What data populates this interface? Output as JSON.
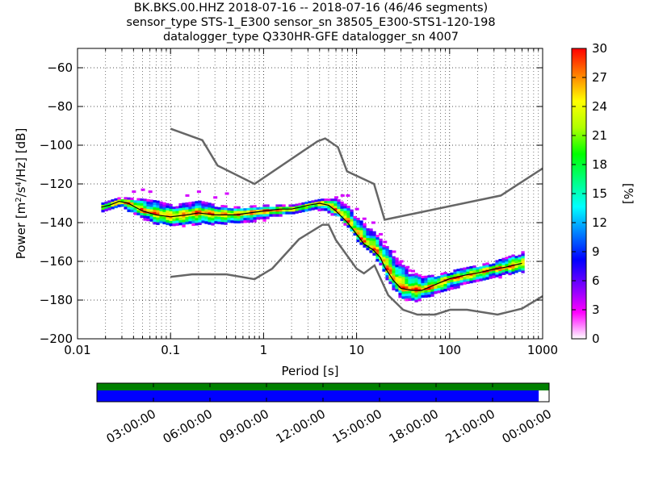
{
  "title": {
    "line1": "BK.BKS.00.HHZ   2018-07-16 -- 2018-07-16  (46/46 segments)",
    "line2": "sensor_type STS-1_E300 sensor_sn 38505_E300-STS1-120-198",
    "line3": "datalogger_type Q330HR-GFE datalogger_sn 4007"
  },
  "chart_data": [
    {
      "type": "heatmap",
      "title": "BK.BKS.00.HHZ   2018-07-16 -- 2018-07-16  (46/46 segments)",
      "xlabel": "Period [s]",
      "ylabel": "Power [m²/s⁴/Hz] [dB]",
      "x_scale": "log",
      "xlim": [
        0.01,
        1000
      ],
      "ylim": [
        -200,
        -50
      ],
      "x_ticks": [
        0.01,
        0.1,
        1,
        10,
        100,
        1000
      ],
      "x_tick_labels": [
        "0.01",
        "0.1",
        "1",
        "10",
        "100",
        "1000"
      ],
      "y_ticks": [
        -200,
        -180,
        -160,
        -140,
        -120,
        -100,
        -80,
        -60
      ],
      "y_tick_labels": [
        "−200",
        "−180",
        "−160",
        "−140",
        "−120",
        "−100",
        "−80",
        "−60"
      ],
      "grid": true,
      "colorbar": {
        "label": "[%]",
        "range": [
          0,
          30
        ],
        "ticks": [
          0,
          3,
          6,
          9,
          12,
          15,
          18,
          21,
          24,
          27,
          30
        ],
        "tick_labels": [
          "0",
          "3",
          "6",
          "9",
          "12",
          "15",
          "18",
          "21",
          "24",
          "27",
          "30"
        ],
        "colors": [
          "#ffffff",
          "#ff00ff",
          "#7a00ff",
          "#0000ff",
          "#0080ff",
          "#00ffff",
          "#00ff80",
          "#00ff00",
          "#b0ff00",
          "#ffff00",
          "#ff8000",
          "#ff0000"
        ]
      },
      "psd_band": {
        "mode_db": [
          [
            0.018,
            -132
          ],
          [
            0.022,
            -131
          ],
          [
            0.028,
            -129
          ],
          [
            0.035,
            -130
          ],
          [
            0.05,
            -134
          ],
          [
            0.07,
            -136
          ],
          [
            0.1,
            -137
          ],
          [
            0.15,
            -136
          ],
          [
            0.2,
            -135
          ],
          [
            0.3,
            -136
          ],
          [
            0.5,
            -136
          ],
          [
            0.7,
            -135
          ],
          [
            1.0,
            -134
          ],
          [
            1.5,
            -133
          ],
          [
            2.0,
            -133
          ],
          [
            2.5,
            -132
          ],
          [
            3.0,
            -131
          ],
          [
            4.0,
            -130
          ],
          [
            5.0,
            -131
          ],
          [
            6.0,
            -134
          ],
          [
            8.0,
            -140
          ],
          [
            10.0,
            -146
          ],
          [
            12.0,
            -151
          ],
          [
            15.0,
            -154
          ],
          [
            18.0,
            -158
          ],
          [
            20.0,
            -163
          ],
          [
            25.0,
            -170
          ],
          [
            30.0,
            -174
          ],
          [
            40.0,
            -175
          ],
          [
            50.0,
            -175
          ],
          [
            70.0,
            -172
          ],
          [
            100.0,
            -169
          ],
          [
            150.0,
            -167
          ],
          [
            200.0,
            -166
          ],
          [
            300.0,
            -164
          ],
          [
            400.0,
            -163
          ],
          [
            600.0,
            -161
          ]
        ],
        "upper_db": [
          [
            0.018,
            -130
          ],
          [
            0.028,
            -127
          ],
          [
            0.05,
            -128
          ],
          [
            0.07,
            -129
          ],
          [
            0.1,
            -131
          ],
          [
            0.2,
            -129
          ],
          [
            0.3,
            -131
          ],
          [
            0.5,
            -132
          ],
          [
            1.0,
            -131
          ],
          [
            2.0,
            -131
          ],
          [
            4.0,
            -128
          ],
          [
            6.0,
            -128
          ],
          [
            8.0,
            -132
          ],
          [
            10.0,
            -138
          ],
          [
            15.0,
            -145
          ],
          [
            20.0,
            -152
          ],
          [
            30.0,
            -162
          ],
          [
            40.0,
            -166
          ],
          [
            50.0,
            -168
          ],
          [
            70.0,
            -167
          ],
          [
            100.0,
            -165
          ],
          [
            200.0,
            -162
          ],
          [
            300.0,
            -160
          ],
          [
            600.0,
            -155
          ]
        ],
        "lower_db": [
          [
            0.018,
            -134
          ],
          [
            0.028,
            -132
          ],
          [
            0.05,
            -138
          ],
          [
            0.07,
            -141
          ],
          [
            0.1,
            -142
          ],
          [
            0.2,
            -141
          ],
          [
            0.3,
            -141
          ],
          [
            0.5,
            -140
          ],
          [
            1.0,
            -138
          ],
          [
            2.0,
            -135
          ],
          [
            4.0,
            -133
          ],
          [
            6.0,
            -137
          ],
          [
            8.0,
            -143
          ],
          [
            10.0,
            -150
          ],
          [
            15.0,
            -157
          ],
          [
            20.0,
            -168
          ],
          [
            25.0,
            -176
          ],
          [
            30.0,
            -179
          ],
          [
            40.0,
            -181
          ],
          [
            50.0,
            -179
          ],
          [
            70.0,
            -177
          ],
          [
            100.0,
            -174
          ],
          [
            200.0,
            -170
          ],
          [
            300.0,
            -168
          ],
          [
            600.0,
            -166
          ]
        ],
        "outliers_db": [
          [
            0.04,
            -124
          ],
          [
            0.05,
            -123
          ],
          [
            0.06,
            -124
          ],
          [
            0.15,
            -126
          ],
          [
            0.2,
            -124
          ],
          [
            0.3,
            -127
          ],
          [
            0.4,
            -125
          ],
          [
            6.0,
            -127
          ],
          [
            7.0,
            -126
          ],
          [
            8.0,
            -126
          ],
          [
            10.0,
            -133
          ],
          [
            12.0,
            -138
          ],
          [
            15.0,
            -140
          ],
          [
            18.0,
            -146
          ],
          [
            20.0,
            -150
          ],
          [
            25.0,
            -155
          ],
          [
            30.0,
            -160
          ],
          [
            35.0,
            -163
          ],
          [
            40.0,
            -165
          ]
        ]
      },
      "nhnm_db": [
        [
          0.1,
          -91.5
        ],
        [
          0.22,
          -97.4
        ],
        [
          0.32,
          -110.5
        ],
        [
          0.8,
          -120
        ],
        [
          3.8,
          -98
        ],
        [
          4.6,
          -96.5
        ],
        [
          6.3,
          -101
        ],
        [
          7.9,
          -113.5
        ],
        [
          15.4,
          -120
        ],
        [
          20,
          -138.5
        ],
        [
          354.8,
          -126
        ],
        [
          1000,
          -112
        ]
      ],
      "nlnm_db": [
        [
          0.1,
          -168
        ],
        [
          0.17,
          -166.7
        ],
        [
          0.4,
          -166.7
        ],
        [
          0.8,
          -169.2
        ],
        [
          1.24,
          -163.7
        ],
        [
          2.4,
          -148.6
        ],
        [
          4.3,
          -141.1
        ],
        [
          5.0,
          -141.1
        ],
        [
          6.0,
          -149
        ],
        [
          10.0,
          -163.8
        ],
        [
          12.0,
          -166.2
        ],
        [
          15.6,
          -162.1
        ],
        [
          21.9,
          -177.5
        ],
        [
          31.6,
          -185
        ],
        [
          45,
          -187.5
        ],
        [
          70,
          -187.5
        ],
        [
          101,
          -185
        ],
        [
          154,
          -185
        ],
        [
          328,
          -187.5
        ],
        [
          600,
          -184.4
        ],
        [
          1000,
          -178
        ]
      ]
    },
    {
      "type": "bar",
      "title": "",
      "x_tick_labels": [
        "03:00:00",
        "06:00:00",
        "09:00:00",
        "12:00:00",
        "15:00:00",
        "18:00:00",
        "21:00:00",
        "00:00:00"
      ],
      "series": [
        {
          "color": "#008000",
          "coverage_fraction": 1.0
        },
        {
          "color": "#0000ff",
          "coverage_fraction": 0.977
        }
      ]
    }
  ]
}
